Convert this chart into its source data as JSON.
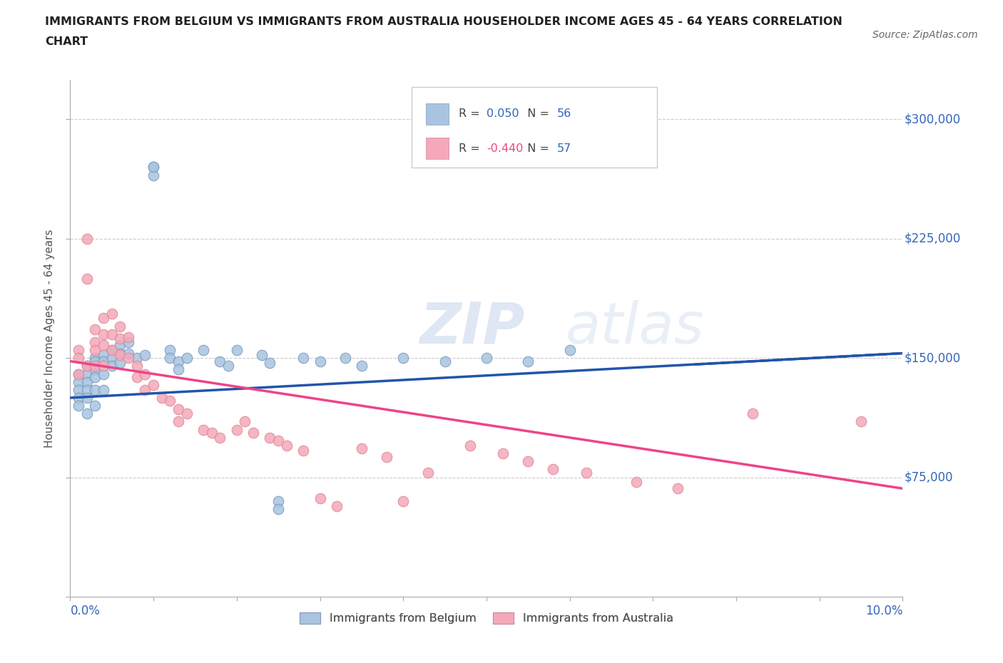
{
  "title_line1": "IMMIGRANTS FROM BELGIUM VS IMMIGRANTS FROM AUSTRALIA HOUSEHOLDER INCOME AGES 45 - 64 YEARS CORRELATION",
  "title_line2": "CHART",
  "source_text": "Source: ZipAtlas.com",
  "ylabel": "Householder Income Ages 45 - 64 years",
  "xlim": [
    0.0,
    0.1
  ],
  "ylim": [
    0,
    325000
  ],
  "yticks": [
    0,
    75000,
    150000,
    225000,
    300000
  ],
  "ytick_labels": [
    "",
    "$75,000",
    "$150,000",
    "$225,000",
    "$300,000"
  ],
  "xticks": [
    0.0,
    0.01,
    0.02,
    0.03,
    0.04,
    0.05,
    0.06,
    0.07,
    0.08,
    0.09,
    0.1
  ],
  "xtick_labels": [
    "0.0%",
    "",
    "",
    "",
    "",
    "",
    "",
    "",
    "",
    "",
    "10.0%"
  ],
  "belgium_color": "#A8C4E0",
  "australia_color": "#F4A8B8",
  "belgium_line_color": "#2255AA",
  "australia_line_color": "#EE4488",
  "belgium_R": 0.05,
  "belgium_N": 56,
  "australia_R": -0.44,
  "australia_N": 57,
  "grid_color": "#CCCCCC",
  "belgium_x": [
    0.001,
    0.001,
    0.001,
    0.001,
    0.001,
    0.002,
    0.002,
    0.002,
    0.002,
    0.002,
    0.002,
    0.003,
    0.003,
    0.003,
    0.003,
    0.003,
    0.003,
    0.004,
    0.004,
    0.004,
    0.004,
    0.005,
    0.005,
    0.005,
    0.006,
    0.006,
    0.006,
    0.007,
    0.007,
    0.008,
    0.009,
    0.01,
    0.01,
    0.01,
    0.012,
    0.012,
    0.013,
    0.013,
    0.014,
    0.016,
    0.018,
    0.019,
    0.02,
    0.023,
    0.024,
    0.025,
    0.025,
    0.028,
    0.03,
    0.033,
    0.035,
    0.04,
    0.045,
    0.05,
    0.055,
    0.06
  ],
  "belgium_y": [
    140000,
    135000,
    130000,
    125000,
    120000,
    145000,
    140000,
    135000,
    130000,
    125000,
    115000,
    150000,
    148000,
    143000,
    138000,
    130000,
    120000,
    152000,
    148000,
    140000,
    130000,
    155000,
    150000,
    145000,
    158000,
    153000,
    147000,
    160000,
    153000,
    150000,
    152000,
    270000,
    265000,
    270000,
    155000,
    150000,
    148000,
    143000,
    150000,
    155000,
    148000,
    145000,
    155000,
    152000,
    147000,
    60000,
    55000,
    150000,
    148000,
    150000,
    145000,
    150000,
    148000,
    150000,
    148000,
    155000
  ],
  "australia_x": [
    0.001,
    0.001,
    0.001,
    0.002,
    0.002,
    0.002,
    0.003,
    0.003,
    0.003,
    0.003,
    0.004,
    0.004,
    0.004,
    0.004,
    0.005,
    0.005,
    0.005,
    0.006,
    0.006,
    0.006,
    0.007,
    0.007,
    0.008,
    0.008,
    0.009,
    0.009,
    0.01,
    0.011,
    0.012,
    0.013,
    0.013,
    0.014,
    0.016,
    0.017,
    0.018,
    0.02,
    0.021,
    0.022,
    0.024,
    0.025,
    0.026,
    0.028,
    0.03,
    0.032,
    0.035,
    0.038,
    0.04,
    0.043,
    0.048,
    0.052,
    0.055,
    0.058,
    0.062,
    0.068,
    0.073,
    0.082,
    0.095
  ],
  "australia_y": [
    155000,
    150000,
    140000,
    225000,
    200000,
    145000,
    168000,
    160000,
    155000,
    145000,
    175000,
    165000,
    158000,
    145000,
    178000,
    165000,
    155000,
    170000,
    162000,
    152000,
    163000,
    150000,
    145000,
    138000,
    140000,
    130000,
    133000,
    125000,
    123000,
    118000,
    110000,
    115000,
    105000,
    103000,
    100000,
    105000,
    110000,
    103000,
    100000,
    98000,
    95000,
    92000,
    62000,
    57000,
    93000,
    88000,
    60000,
    78000,
    95000,
    90000,
    85000,
    80000,
    78000,
    72000,
    68000,
    115000,
    110000
  ]
}
